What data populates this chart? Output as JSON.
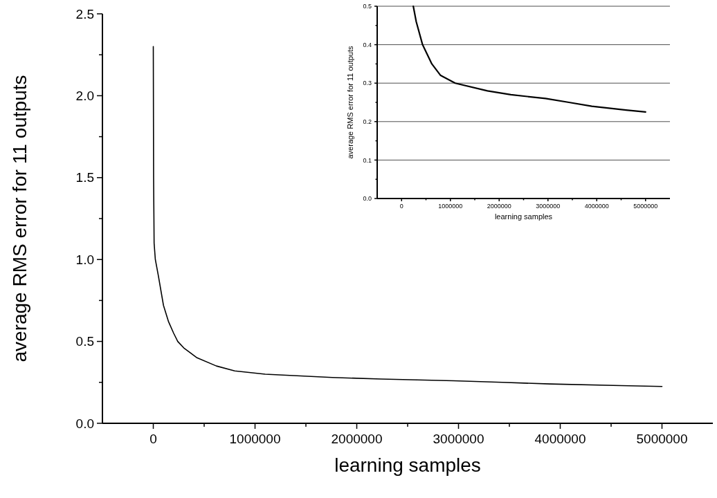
{
  "chart_data": [
    {
      "type": "line",
      "xlabel": "learning samples",
      "ylabel": "average RMS error for 11 outputs",
      "xlim": [
        -500000,
        5500000
      ],
      "ylim": [
        0,
        2.5
      ],
      "xticks": [
        0,
        {
          "value": 500000,
          "label": null
        },
        1000000,
        {
          "value": 1500000,
          "label": null
        },
        2000000,
        {
          "value": 2500000,
          "label": null
        },
        3000000,
        {
          "value": 3500000,
          "label": null
        },
        4000000,
        {
          "value": 4500000,
          "label": null
        },
        5000000
      ],
      "yticks": [
        {
          "value": 0,
          "label": "0.0"
        },
        {
          "value": 0.25,
          "label": null
        },
        {
          "value": 0.5,
          "label": "0.5"
        },
        {
          "value": 0.75,
          "label": null
        },
        {
          "value": 1,
          "label": "1.0"
        },
        {
          "value": 1.25,
          "label": null
        },
        {
          "value": 1.5,
          "label": "1.5"
        },
        {
          "value": 1.75,
          "label": null
        },
        {
          "value": 2,
          "label": "2.0"
        },
        {
          "value": 2.25,
          "label": null
        },
        {
          "value": 2.5,
          "label": "2.5"
        }
      ],
      "grid": false,
      "marker": "none",
      "line_style": "solid",
      "series": [
        {
          "color": "#000000",
          "x": [
            0,
            3000,
            8000,
            20000,
            50000,
            100000,
            150000,
            200000,
            240000,
            300000,
            430000,
            620000,
            800000,
            1100000,
            1760000,
            2240000,
            2950000,
            3430000,
            3900000,
            4600000,
            5000000
          ],
          "values": [
            2.3,
            1.5,
            1.1,
            1.0,
            0.9,
            0.72,
            0.62,
            0.55,
            0.5,
            0.46,
            0.4,
            0.35,
            0.32,
            0.3,
            0.28,
            0.27,
            0.26,
            0.25,
            0.24,
            0.23,
            0.225
          ]
        }
      ]
    },
    {
      "type": "line",
      "xlabel": "learning samples",
      "ylabel": "average RMS error for 11 outputs",
      "xlim": [
        -500000,
        5500000
      ],
      "ylim": [
        0,
        0.5
      ],
      "xticks": [
        0,
        {
          "value": 500000,
          "label": null
        },
        1000000,
        {
          "value": 1500000,
          "label": null
        },
        2000000,
        {
          "value": 2500000,
          "label": null
        },
        3000000,
        {
          "value": 3500000,
          "label": null
        },
        4000000,
        {
          "value": 4500000,
          "label": null
        },
        5000000
      ],
      "yticks": [
        {
          "value": 0,
          "label": "0.0"
        },
        {
          "value": 0.05,
          "label": null
        },
        {
          "value": 0.1,
          "label": "0.1"
        },
        {
          "value": 0.15,
          "label": null
        },
        {
          "value": 0.2,
          "label": "0.2"
        },
        {
          "value": 0.25,
          "label": null
        },
        {
          "value": 0.3,
          "label": "0.3"
        },
        {
          "value": 0.35,
          "label": null
        },
        {
          "value": 0.4,
          "label": "0.4"
        },
        {
          "value": 0.45,
          "label": null
        },
        {
          "value": 0.5,
          "label": "0.5"
        }
      ],
      "grid": "y",
      "marker": "none",
      "line_style": "solid",
      "series": [
        {
          "color": "#000000",
          "x": [
            240000,
            300000,
            430000,
            620000,
            800000,
            1100000,
            1760000,
            2240000,
            2950000,
            3430000,
            3900000,
            4600000,
            5000000
          ],
          "values": [
            0.5,
            0.46,
            0.4,
            0.35,
            0.32,
            0.3,
            0.28,
            0.27,
            0.26,
            0.25,
            0.24,
            0.23,
            0.225
          ]
        }
      ]
    }
  ]
}
